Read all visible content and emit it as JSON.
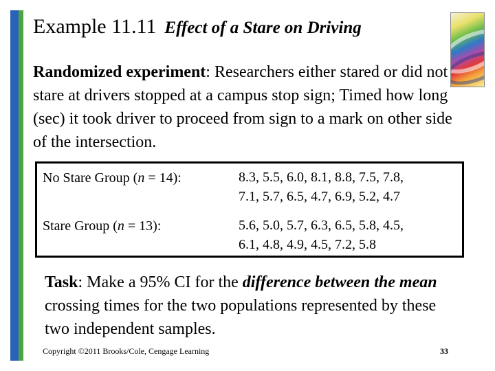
{
  "title": {
    "main": "Example 11.11",
    "subtitle": "Effect of a Stare on Driving"
  },
  "intro": {
    "lead": "Randomized experiment",
    "text": ": Researchers either stared or did not stare at drivers stopped at a campus stop sign; Timed how long (sec) it took driver to proceed from  sign to a mark on other side of the intersection."
  },
  "groups": [
    {
      "name": "No Stare Group",
      "n_prefix": "(",
      "n_symbol": "n",
      "n_suffix": " = 14):",
      "values_line1": "8.3, 5.5, 6.0, 8.1, 8.8, 7.5, 7.8,",
      "values_line2": "7.1, 5.7, 6.5, 4.7, 6.9, 5.2, 4.7"
    },
    {
      "name": "Stare Group",
      "n_prefix": "(",
      "n_symbol": "n",
      "n_suffix": " = 13):",
      "values_line1": "5.6, 5.0, 5.7, 6.3, 6.5, 5.8, 4.5,",
      "values_line2": "6.1, 4.8, 4.9, 4.5, 7.2, 5.8"
    }
  ],
  "task": {
    "lead": "Task",
    "text1": ": Make a 95% CI for the ",
    "emphasis": "difference between the mean",
    "text2": " crossing times for the two populations represented by these two independent samples."
  },
  "footer": {
    "copyright": "Copyright ©2011 Brooks/Cole, Cengage Learning",
    "page_number": "33"
  },
  "colors": {
    "accent_blue": "#2b62b7",
    "accent_green": "#4aa542"
  },
  "logo_icon": "abstract-swirl-logo"
}
